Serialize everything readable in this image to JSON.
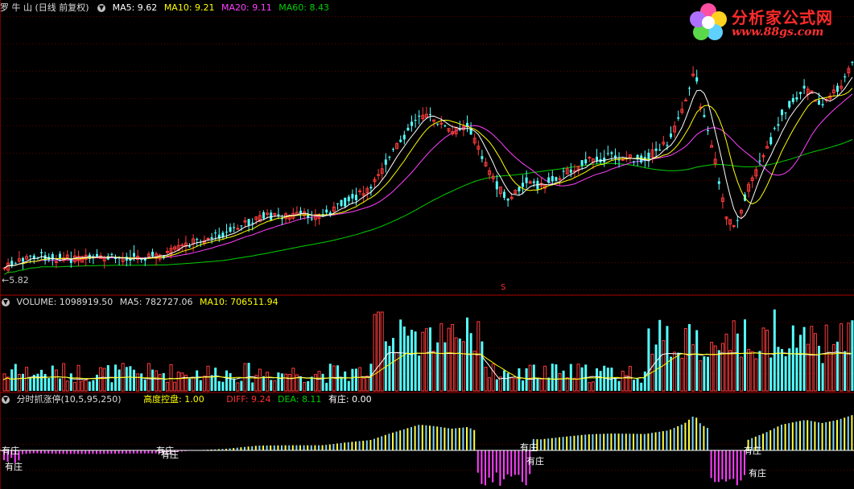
{
  "main_panel": {
    "stock_name": "罗 牛 山",
    "mode": "(日线 前复权)",
    "ma5": "MA5: 9.62",
    "ma10": "MA10: 9.21",
    "ma20": "MA20: 9.11",
    "ma60": "MA60: 8.43",
    "low_marker": "←5.82",
    "s_marker": "S"
  },
  "volume_panel": {
    "volume": "VOLUME: 1098919.50",
    "ma5": "MA5: 782727.06",
    "ma10": "MA10: 706511.94"
  },
  "indicator_panel": {
    "name": "分时抓涨停(10,5,95,250)",
    "control": "高度控盘: 1.00",
    "diff": "DIFF: 9.24",
    "dea": "DEA: 8.11",
    "youzhuang": "有庄: 0.00",
    "markers": [
      "有庄",
      "有庄",
      "有庄",
      "有庄",
      "有庄",
      "有庄",
      "有庄",
      "有庄"
    ]
  },
  "logo": {
    "title": "分析家公式网",
    "url": "www.88gs.com"
  },
  "colors": {
    "up": "#ff3b3b",
    "down": "#54ffff",
    "ma5": "#ffffff",
    "ma10": "#ffff00",
    "ma20": "#ff40ff",
    "ma60": "#00d000",
    "grid": "#8b0000"
  },
  "chart_data": {
    "type": "candlestick",
    "low_price": 5.82,
    "price_ma": {
      "ma5": 9.62,
      "ma10": 9.21,
      "ma20": 9.11,
      "ma60": 8.43
    },
    "volume": {
      "volume": 1098919.5,
      "ma5": 782727.06,
      "ma10": 706511.94
    },
    "indicator": {
      "control": 1.0,
      "diff": 9.24,
      "dea": 8.11,
      "youzhuang": 0.0
    }
  }
}
